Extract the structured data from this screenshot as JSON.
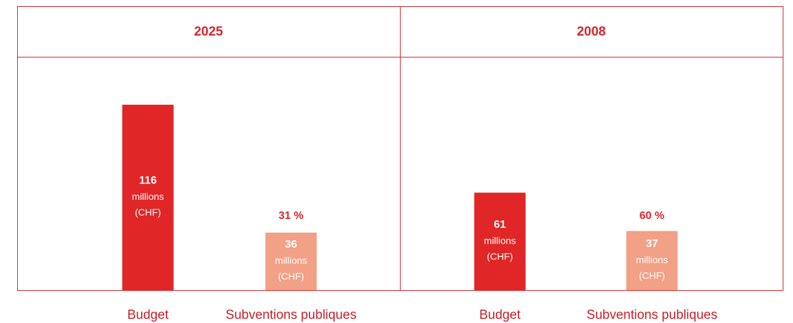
{
  "chart_data": [
    {
      "type": "bar",
      "title": "2025",
      "categories": [
        "Budget",
        "Subventions publiques"
      ],
      "values": [
        116,
        36
      ],
      "colors": [
        "#e02626",
        "#f2a086"
      ],
      "unit_lines": [
        "millions",
        "(CHF)"
      ],
      "share": {
        "value": 31,
        "label": "31 %"
      }
    },
    {
      "type": "bar",
      "title": "2008",
      "categories": [
        "Budget",
        "Subventions publiques"
      ],
      "values": [
        61,
        37
      ],
      "colors": [
        "#e02626",
        "#f2a086"
      ],
      "unit_lines": [
        "millions",
        "(CHF)"
      ],
      "share": {
        "value": 60,
        "label": "60 %"
      }
    }
  ]
}
